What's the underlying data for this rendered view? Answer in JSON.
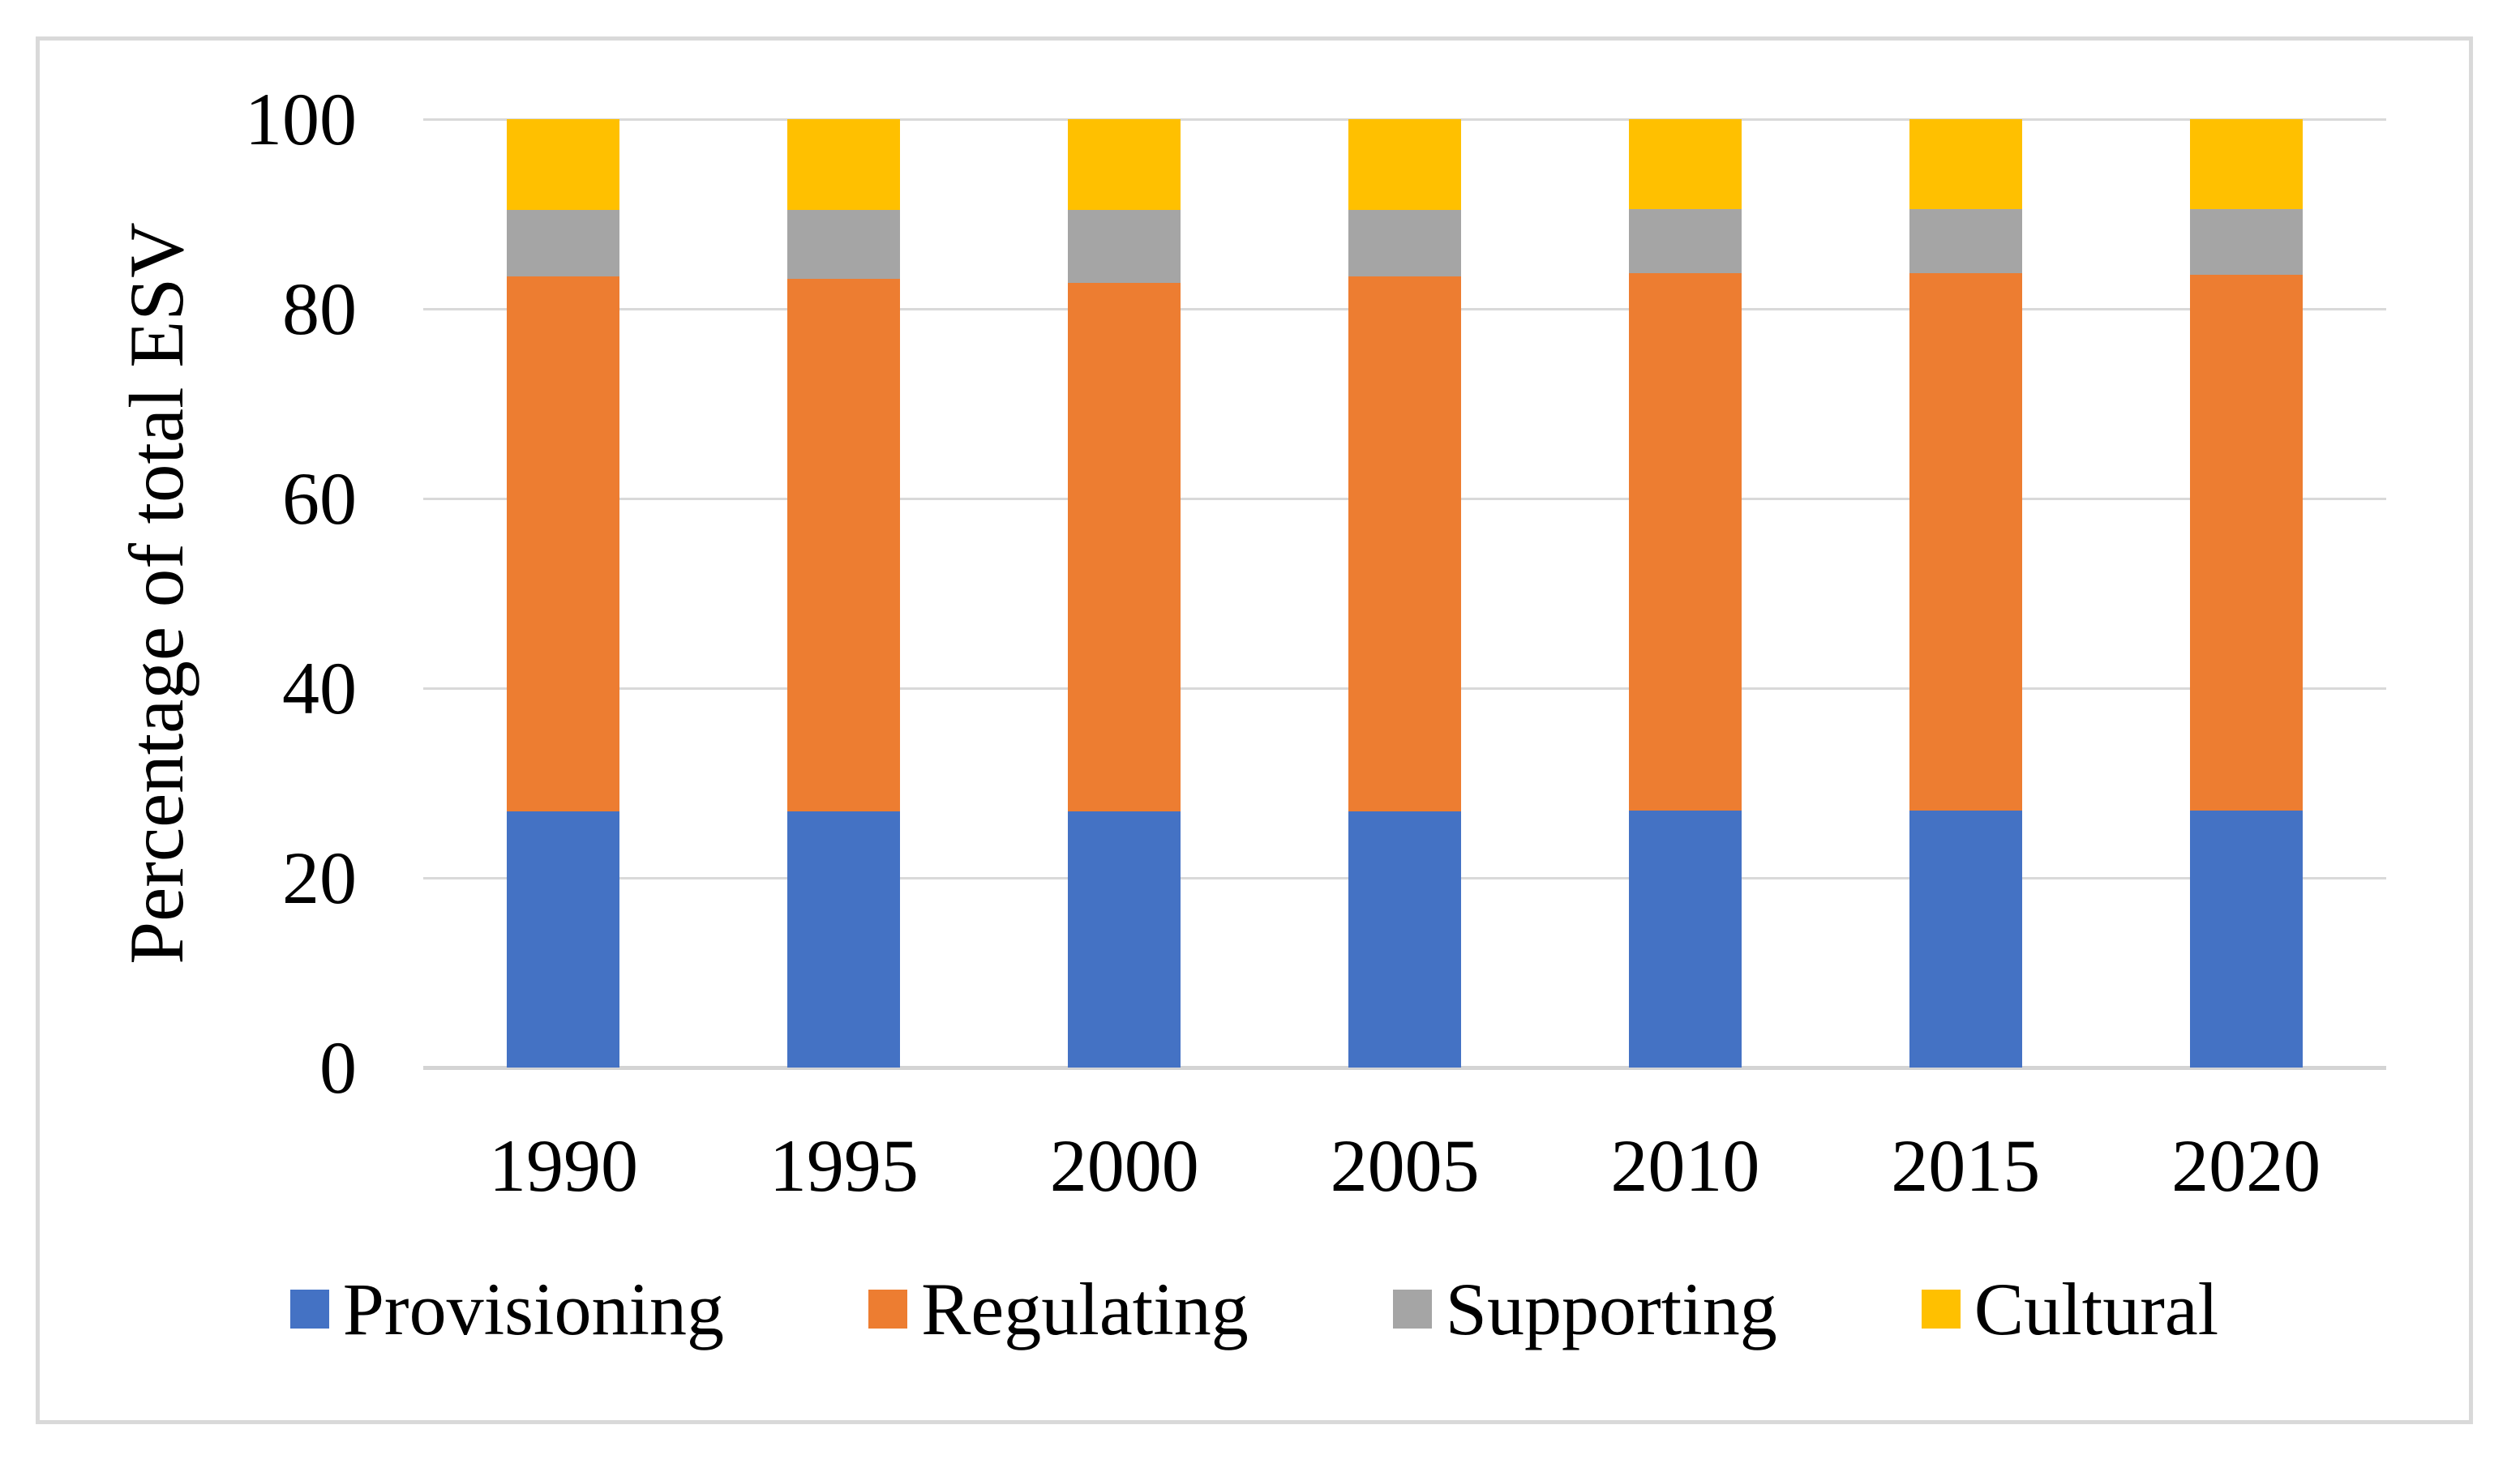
{
  "chart_data": {
    "type": "bar",
    "stacked": true,
    "title": "",
    "xlabel": "",
    "ylabel": "Percentage of total ESV",
    "categories": [
      "1990",
      "1995",
      "2000",
      "2005",
      "2010",
      "2015",
      "2020"
    ],
    "series": [
      {
        "name": "Provisioning",
        "color": "#4472C4",
        "values": [
          27.0,
          27.0,
          27.0,
          27.0,
          27.1,
          27.1,
          27.1
        ]
      },
      {
        "name": "Regulating",
        "color": "#ED7D31",
        "values": [
          56.4,
          56.2,
          55.7,
          56.4,
          56.7,
          56.7,
          56.5
        ]
      },
      {
        "name": "Supporting",
        "color": "#A5A5A5",
        "values": [
          7.0,
          7.2,
          7.7,
          7.0,
          6.7,
          6.7,
          6.9
        ]
      },
      {
        "name": "Cultural",
        "color": "#FFC000",
        "values": [
          9.6,
          9.6,
          9.6,
          9.6,
          9.5,
          9.5,
          9.5
        ]
      }
    ],
    "ylim": [
      0,
      100
    ],
    "y_ticks": [
      0,
      20,
      40,
      60,
      80,
      100
    ],
    "grid": "horizontal",
    "legend_position": "bottom"
  }
}
